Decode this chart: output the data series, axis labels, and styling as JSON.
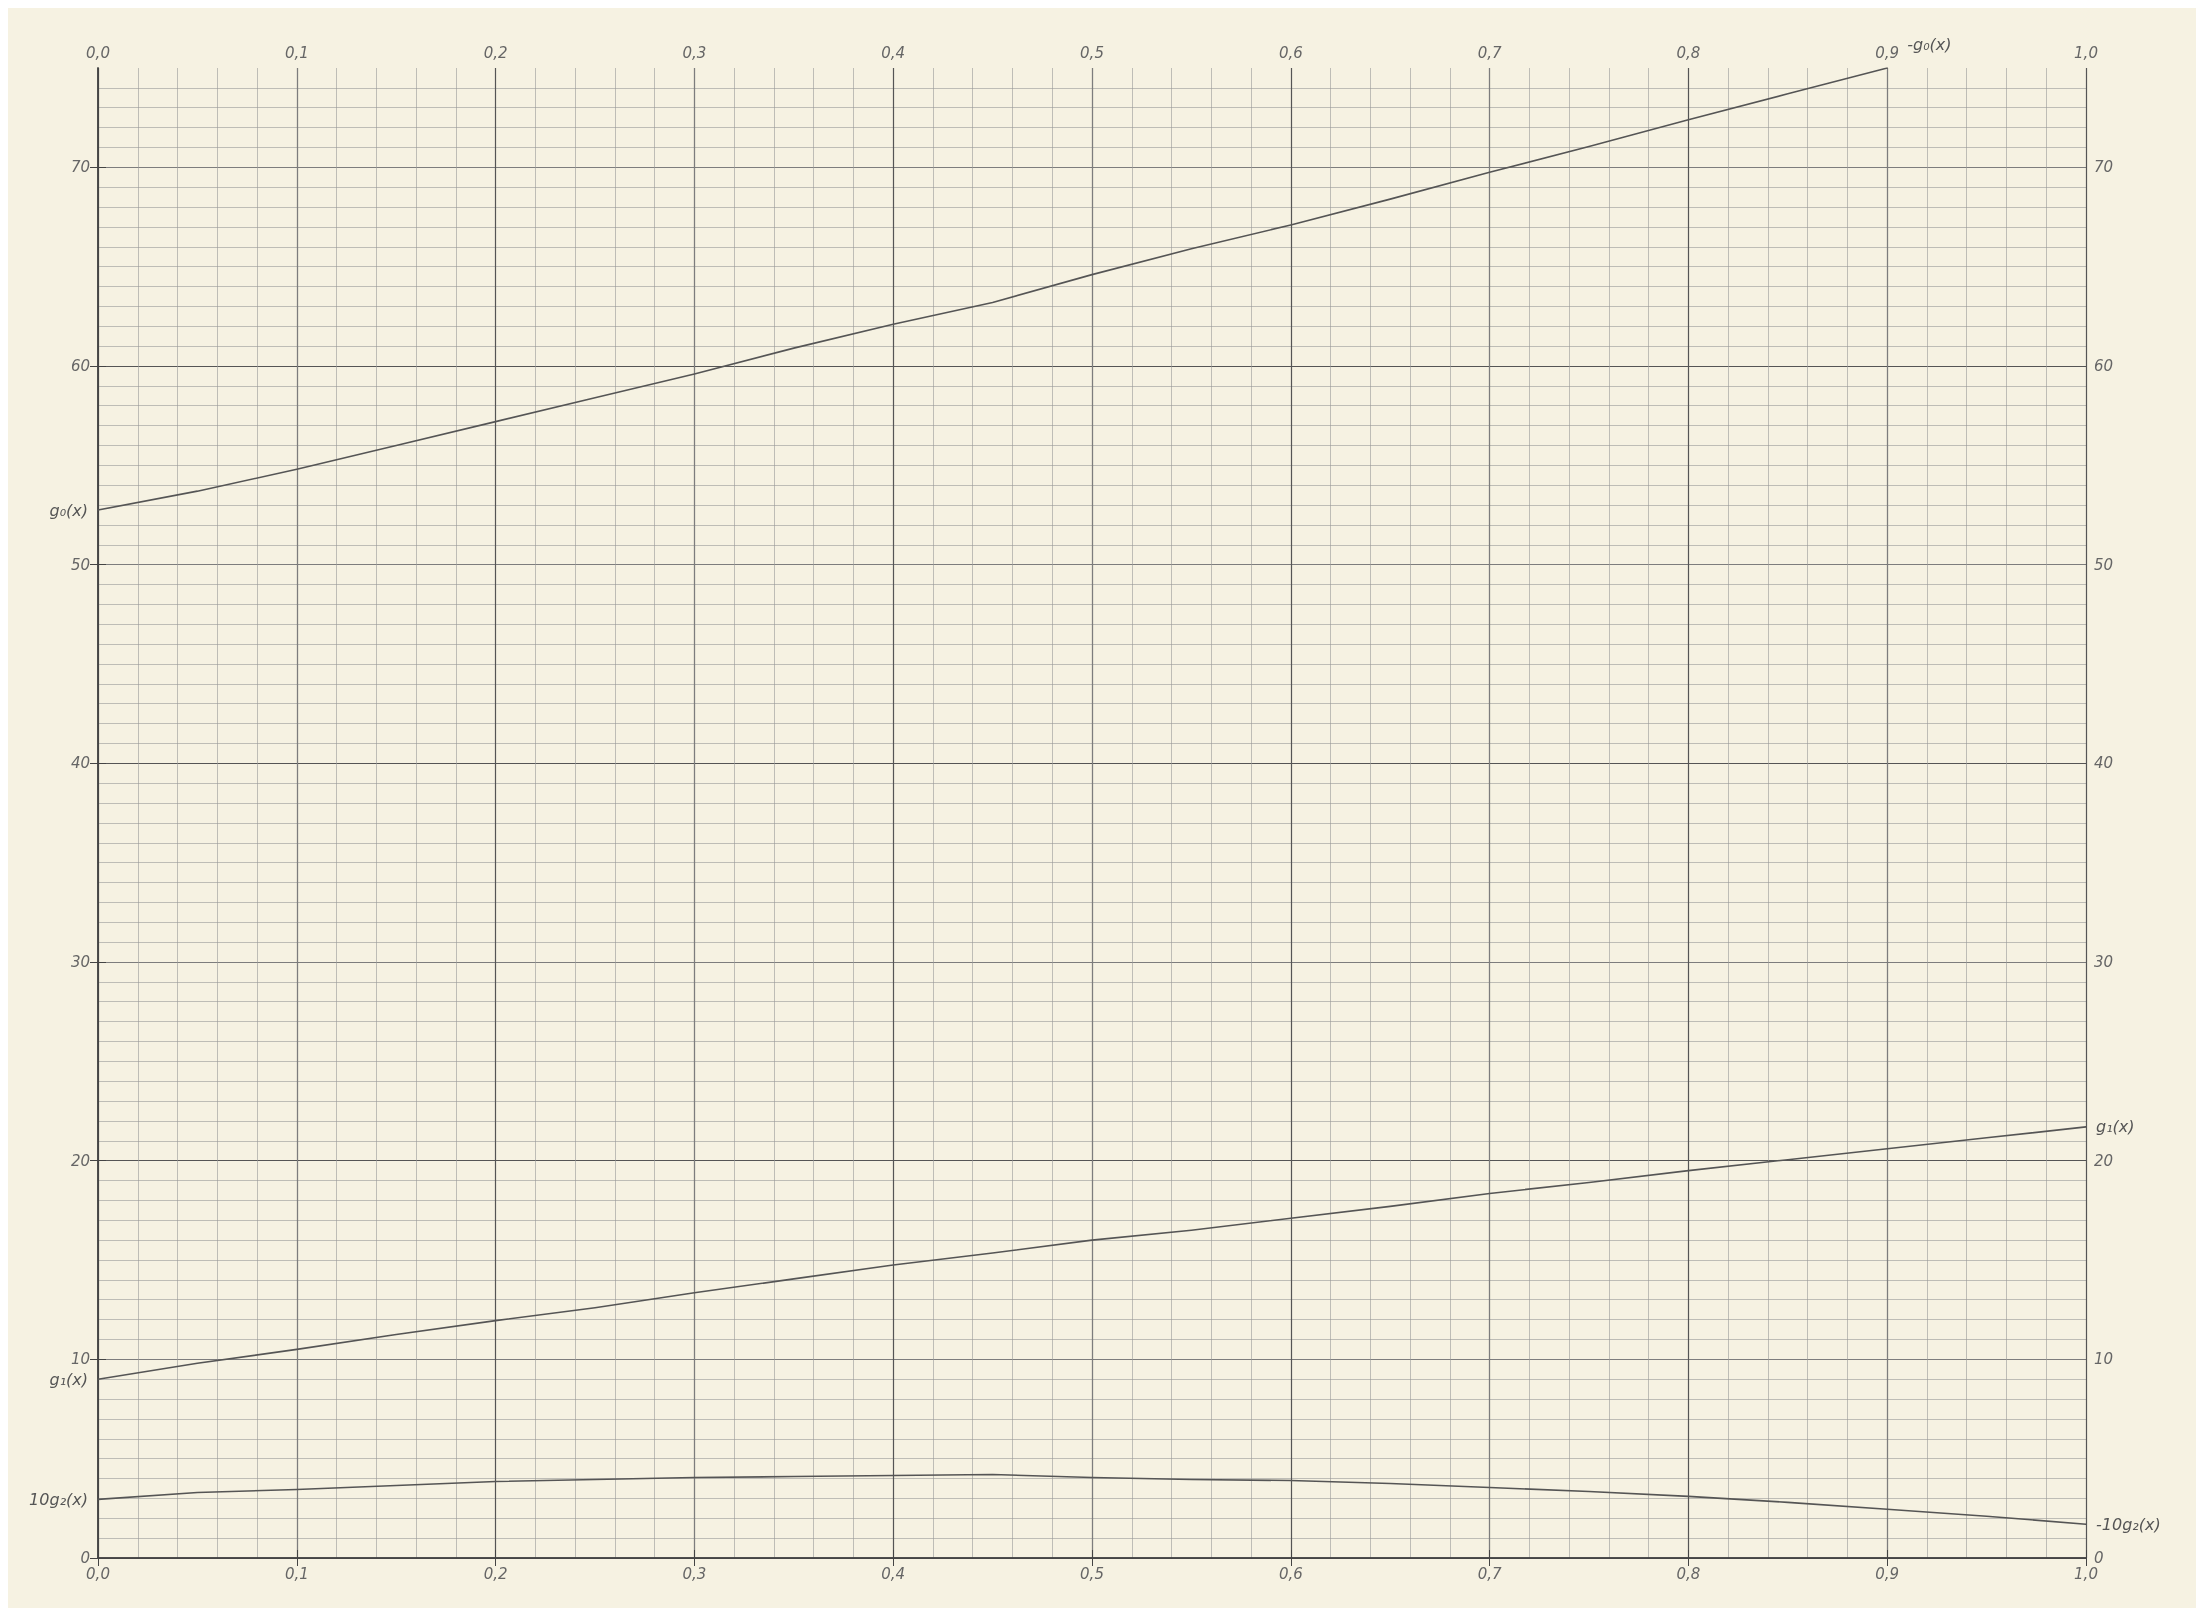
{
  "chart_data": {
    "type": "line",
    "x": [
      0,
      0.05,
      0.1,
      0.15,
      0.2,
      0.25,
      0.3,
      0.35,
      0.4,
      0.45,
      0.5,
      0.55,
      0.6,
      0.65,
      0.7,
      0.75,
      0.8,
      0.85,
      0.9,
      0.95,
      1.0
    ],
    "series": [
      {
        "color": "#555555",
        "x": [
          0,
          0.05,
          0.1,
          0.15,
          0.2,
          0.25,
          0.3,
          0.35,
          0.4,
          0.45,
          0.5,
          0.55,
          0.6,
          0.65,
          0.7,
          0.75,
          0.8,
          0.85,
          0.9
        ],
        "values": [
          52.75,
          53.7,
          54.8,
          56.0,
          57.2,
          58.4,
          59.6,
          60.9,
          62.1,
          63.2,
          64.6,
          65.9,
          67.1,
          68.4,
          69.75,
          71.05,
          72.4,
          73.7,
          75.0
        ]
      },
      {
        "color": "#555555",
        "values": [
          9.0,
          9.8,
          10.5,
          11.25,
          11.95,
          12.6,
          13.35,
          14.05,
          14.75,
          15.35,
          16.0,
          16.5,
          17.1,
          17.7,
          18.35,
          18.9,
          19.5,
          20.05,
          20.6,
          21.15,
          21.7
        ]
      },
      {
        "color": "#555555",
        "values": [
          2.95,
          3.3,
          3.45,
          3.65,
          3.85,
          3.95,
          4.05,
          4.1,
          4.15,
          4.2,
          4.05,
          3.95,
          3.9,
          3.75,
          3.55,
          3.35,
          3.1,
          2.8,
          2.45,
          2.1,
          1.7
        ]
      }
    ],
    "xlim": [
      0,
      1.0
    ],
    "xticks": [
      {
        "value": 0,
        "label": "0,0"
      },
      {
        "value": 0.1,
        "label": "0,1"
      },
      {
        "value": 0.2,
        "label": "0,2"
      },
      {
        "value": 0.3,
        "label": "0,3"
      },
      {
        "value": 0.4,
        "label": "0,4"
      },
      {
        "value": 0.5,
        "label": "0,5"
      },
      {
        "value": 0.6,
        "label": "0,6"
      },
      {
        "value": 0.7,
        "label": "0,7"
      },
      {
        "value": 0.8,
        "label": "0,8"
      },
      {
        "value": 0.9,
        "label": "0,9"
      },
      {
        "value": 1.0,
        "label": "1,0"
      }
    ],
    "x2lim": [
      0,
      1.0
    ],
    "x2ticks": [
      {
        "value": 0,
        "label": "0,0"
      },
      {
        "value": 0.1,
        "label": "0,1"
      },
      {
        "value": 0.2,
        "label": "0,2"
      },
      {
        "value": 0.3,
        "label": "0,3"
      },
      {
        "value": 0.4,
        "label": "0,4"
      },
      {
        "value": 0.5,
        "label": "0,5"
      },
      {
        "value": 0.6,
        "label": "0,6"
      },
      {
        "value": 0.7,
        "label": "0,7"
      },
      {
        "value": 0.8,
        "label": "0,8"
      },
      {
        "value": 0.9,
        "label": "0,9"
      },
      {
        "value": 1.0,
        "label": "1,0"
      }
    ],
    "ylim": [
      0,
      75
    ],
    "yticks": [
      0,
      10,
      20,
      30,
      40,
      50,
      60,
      70
    ],
    "y2lim": [
      0,
      75
    ],
    "y2ticks": [
      0,
      10,
      20,
      30,
      40,
      50,
      60,
      70
    ],
    "annotations": [
      {
        "text": "g₀(x)",
        "x": 0,
        "y": 52.75
      },
      {
        "text": "-g₀(x)",
        "x": 0.9,
        "y": 75.0
      },
      {
        "text": "g₁(x)",
        "x": 0,
        "y": 9.0
      },
      {
        "text": "g₁(x)",
        "x": 1.0,
        "y": 21.7
      },
      {
        "text": "10g₂(x)",
        "x": 0,
        "y": 2.95
      },
      {
        "text": "-10g₂(x)",
        "x": 1.0,
        "y": 1.7
      }
    ],
    "grid": true,
    "marker": "none",
    "line_style": "solid"
  }
}
